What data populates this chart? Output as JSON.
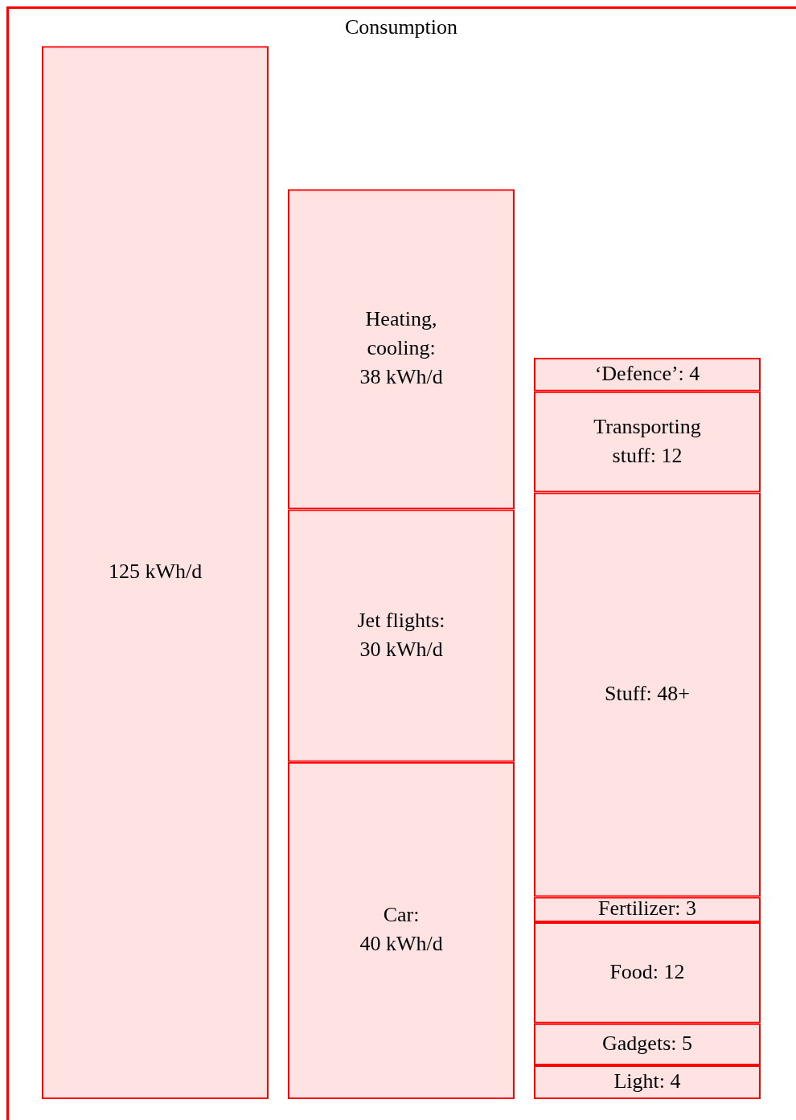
{
  "chart_data": {
    "type": "bar",
    "title": "Consumption",
    "stacked": true,
    "tick_labels": false,
    "legend": false,
    "categories": [
      null,
      null,
      null
    ],
    "series": [
      {
        "color": "#ff0000",
        "values": [
          125,
          40,
          4
        ],
        "value_labels": [
          "125 kWh/d",
          "Car:\n40 kWh/d",
          "Light: 4"
        ]
      },
      {
        "color": "#ff0000",
        "values": [
          null,
          30,
          5
        ],
        "value_labels": [
          null,
          "Jet flights:\n30 kWh/d",
          "Gadgets: 5"
        ]
      },
      {
        "color": "#ff0000",
        "values": [
          null,
          38,
          12
        ],
        "value_labels": [
          null,
          "Heating,\ncooling:\n38 kWh/d",
          "Food: 12"
        ]
      },
      {
        "color": "#ff0000",
        "values": [
          null,
          null,
          3
        ],
        "value_labels": [
          null,
          null,
          "Fertilizer: 3"
        ]
      },
      {
        "color": "#ff0000",
        "values": [
          null,
          null,
          48
        ],
        "value_labels": [
          null,
          null,
          "Stuff: 48+"
        ]
      },
      {
        "color": "#ff0000",
        "values": [
          null,
          null,
          12
        ],
        "value_labels": [
          null,
          null,
          "Transporting\nstuff: 12"
        ]
      },
      {
        "color": "#ff0000",
        "values": [
          null,
          null,
          4
        ],
        "value_labels": [
          null,
          null,
          "‘Defence’: 4"
        ]
      }
    ]
  }
}
